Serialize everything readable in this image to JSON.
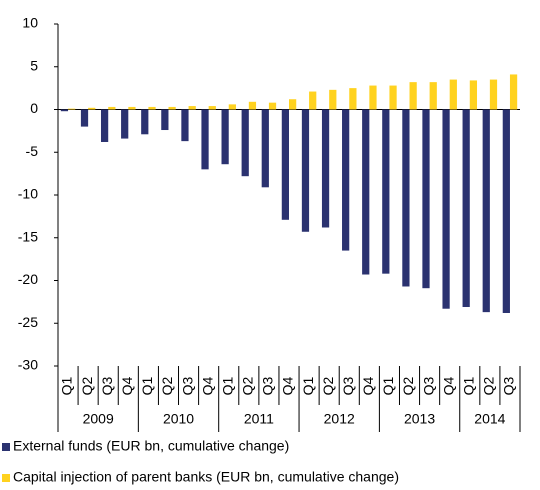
{
  "chart_data": {
    "type": "bar",
    "categories": [
      "Q1",
      "Q2",
      "Q3",
      "Q4",
      "Q1",
      "Q2",
      "Q3",
      "Q4",
      "Q1",
      "Q2",
      "Q3",
      "Q4",
      "Q1",
      "Q2",
      "Q3",
      "Q4",
      "Q1",
      "Q2",
      "Q3",
      "Q4",
      "Q1",
      "Q2",
      "Q3"
    ],
    "groups": [
      "2009",
      "2010",
      "2011",
      "2012",
      "2013",
      "2014"
    ],
    "series": [
      {
        "name": "External funds (EUR bn, cumulative change)",
        "color": "#2b3270",
        "values": [
          -0.2,
          -2.0,
          -3.8,
          -3.4,
          -2.9,
          -2.4,
          -3.7,
          -7.0,
          -6.4,
          -7.8,
          -9.1,
          -12.9,
          -14.3,
          -13.8,
          -16.5,
          -19.3,
          -19.2,
          -20.7,
          -20.9,
          -23.3,
          -23.1,
          -23.7,
          -23.8
        ]
      },
      {
        "name": "Capital injection of parent banks (EUR bn, cumulative change)",
        "color": "#ffd21f",
        "values": [
          0.1,
          0.2,
          0.3,
          0.3,
          0.3,
          0.3,
          0.4,
          0.4,
          0.6,
          0.9,
          0.8,
          1.2,
          2.1,
          2.3,
          2.5,
          2.8,
          2.8,
          3.2,
          3.2,
          3.5,
          3.4,
          3.5,
          4.1
        ]
      }
    ],
    "ylim": [
      -30,
      10
    ],
    "yticks": [
      -30,
      -25,
      -20,
      -15,
      -10,
      -5,
      0,
      5,
      10
    ],
    "grid": false
  }
}
